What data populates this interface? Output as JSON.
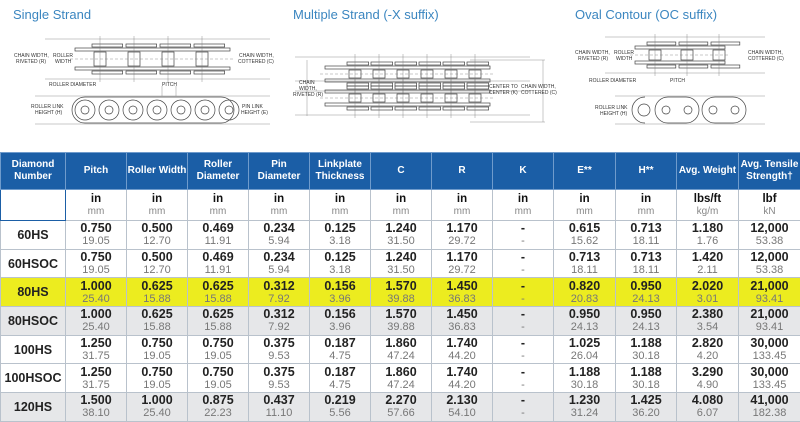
{
  "diagrams": {
    "single": {
      "title": "Single Strand",
      "labels": {
        "chain_riveted": [
          "CHAIN WIDTH,",
          "RIVETED (R)"
        ],
        "roller_width": [
          "ROLLER",
          "WIDTH"
        ],
        "chain_cottered": [
          "CHAIN WIDTH,",
          "COTTERED (C)"
        ],
        "roller_diameter": "ROLLER DIAMETER",
        "pitch": "PITCH",
        "roller_link": [
          "ROLLER LINK",
          "HEIGHT (H)"
        ],
        "pin_link": [
          "PIN LINK",
          "HEIGHT (E)"
        ]
      }
    },
    "multiple": {
      "title": "Multiple Strand (-X suffix)",
      "labels": {
        "chain_riveted": [
          "CHAIN",
          "WIDTH,",
          "RIVETED (R)"
        ],
        "center": [
          "CENTER TO",
          "CENTER (K)"
        ],
        "chain_cottered": [
          "CHAIN WIDTH,",
          "COTTERED (C)"
        ]
      }
    },
    "oval": {
      "title": "Oval Contour (OC suffix)",
      "labels": {
        "chain_riveted": [
          "CHAIN WIDTH,",
          "RIVETED (R)"
        ],
        "roller_width": [
          "ROLLER",
          "WIDTH"
        ],
        "chain_cottered": [
          "CHAIN WIDTH,",
          "COTTERED (C)"
        ],
        "roller_diameter": "ROLLER DIAMETER",
        "pitch": "PITCH",
        "roller_link": [
          "ROLLER LINK",
          "HEIGHT (H)"
        ]
      }
    }
  },
  "colors": {
    "header": "#1b5ea6",
    "highlight": "#ecec1f",
    "alt_row": "#e6e7e9",
    "title": "#3b86c0"
  },
  "table": {
    "headers": [
      [
        "Diamond",
        "Number"
      ],
      [
        "Pitch"
      ],
      [
        "Roller Width"
      ],
      [
        "Roller",
        "Diameter"
      ],
      [
        "Pin",
        "Diameter"
      ],
      [
        "Linkplate",
        "Thickness"
      ],
      [
        "C"
      ],
      [
        "R"
      ],
      [
        "K"
      ],
      [
        "E**"
      ],
      [
        "H**"
      ],
      [
        "Avg. Weight"
      ],
      [
        "Avg. Tensile",
        "Strength†"
      ]
    ],
    "units": [
      null,
      [
        "in",
        "mm"
      ],
      [
        "in",
        "mm"
      ],
      [
        "in",
        "mm"
      ],
      [
        "in",
        "mm"
      ],
      [
        "in",
        "mm"
      ],
      [
        "in",
        "mm"
      ],
      [
        "in",
        "mm"
      ],
      [
        "in",
        "mm"
      ],
      [
        "in",
        "mm"
      ],
      [
        "in",
        "mm"
      ],
      [
        "lbs/ft",
        "kg/m"
      ],
      [
        "lbf",
        "kN"
      ]
    ],
    "rows": [
      {
        "name": "60HS",
        "style": "white",
        "cells": [
          [
            "0.750",
            "19.05"
          ],
          [
            "0.500",
            "12.70"
          ],
          [
            "0.469",
            "11.91"
          ],
          [
            "0.234",
            "5.94"
          ],
          [
            "0.125",
            "3.18"
          ],
          [
            "1.240",
            "31.50"
          ],
          [
            "1.170",
            "29.72"
          ],
          [
            "-",
            "-"
          ],
          [
            "0.615",
            "15.62"
          ],
          [
            "0.713",
            "18.11"
          ],
          [
            "1.180",
            "1.76"
          ],
          [
            "12,000",
            "53.38"
          ]
        ]
      },
      {
        "name": "60HSOC",
        "style": "white",
        "cells": [
          [
            "0.750",
            "19.05"
          ],
          [
            "0.500",
            "12.70"
          ],
          [
            "0.469",
            "11.91"
          ],
          [
            "0.234",
            "5.94"
          ],
          [
            "0.125",
            "3.18"
          ],
          [
            "1.240",
            "31.50"
          ],
          [
            "1.170",
            "29.72"
          ],
          [
            "-",
            "-"
          ],
          [
            "0.713",
            "18.11"
          ],
          [
            "0.713",
            "18.11"
          ],
          [
            "1.420",
            "2.11"
          ],
          [
            "12,000",
            "53.38"
          ]
        ]
      },
      {
        "name": "80HS",
        "style": "highlight",
        "cells": [
          [
            "1.000",
            "25.40"
          ],
          [
            "0.625",
            "15.88"
          ],
          [
            "0.625",
            "15.88"
          ],
          [
            "0.312",
            "7.92"
          ],
          [
            "0.156",
            "3.96"
          ],
          [
            "1.570",
            "39.88"
          ],
          [
            "1.450",
            "36.83"
          ],
          [
            "-",
            "-"
          ],
          [
            "0.820",
            "20.83"
          ],
          [
            "0.950",
            "24.13"
          ],
          [
            "2.020",
            "3.01"
          ],
          [
            "21,000",
            "93.41"
          ]
        ]
      },
      {
        "name": "80HSOC",
        "style": "grey",
        "cells": [
          [
            "1.000",
            "25.40"
          ],
          [
            "0.625",
            "15.88"
          ],
          [
            "0.625",
            "15.88"
          ],
          [
            "0.312",
            "7.92"
          ],
          [
            "0.156",
            "3.96"
          ],
          [
            "1.570",
            "39.88"
          ],
          [
            "1.450",
            "36.83"
          ],
          [
            "-",
            "-"
          ],
          [
            "0.950",
            "24.13"
          ],
          [
            "0.950",
            "24.13"
          ],
          [
            "2.380",
            "3.54"
          ],
          [
            "21,000",
            "93.41"
          ]
        ]
      },
      {
        "name": "100HS",
        "style": "white",
        "cells": [
          [
            "1.250",
            "31.75"
          ],
          [
            "0.750",
            "19.05"
          ],
          [
            "0.750",
            "19.05"
          ],
          [
            "0.375",
            "9.53"
          ],
          [
            "0.187",
            "4.75"
          ],
          [
            "1.860",
            "47.24"
          ],
          [
            "1.740",
            "44.20"
          ],
          [
            "-",
            "-"
          ],
          [
            "1.025",
            "26.04"
          ],
          [
            "1.188",
            "30.18"
          ],
          [
            "2.820",
            "4.20"
          ],
          [
            "30,000",
            "133.45"
          ]
        ]
      },
      {
        "name": "100HSOC",
        "style": "white",
        "cells": [
          [
            "1.250",
            "31.75"
          ],
          [
            "0.750",
            "19.05"
          ],
          [
            "0.750",
            "19.05"
          ],
          [
            "0.375",
            "9.53"
          ],
          [
            "0.187",
            "4.75"
          ],
          [
            "1.860",
            "47.24"
          ],
          [
            "1.740",
            "44.20"
          ],
          [
            "-",
            "-"
          ],
          [
            "1.188",
            "30.18"
          ],
          [
            "1.188",
            "30.18"
          ],
          [
            "3.290",
            "4.90"
          ],
          [
            "30,000",
            "133.45"
          ]
        ]
      },
      {
        "name": "120HS",
        "style": "grey",
        "cells": [
          [
            "1.500",
            "38.10"
          ],
          [
            "1.000",
            "25.40"
          ],
          [
            "0.875",
            "22.23"
          ],
          [
            "0.437",
            "11.10"
          ],
          [
            "0.219",
            "5.56"
          ],
          [
            "2.270",
            "57.66"
          ],
          [
            "2.130",
            "54.10"
          ],
          [
            "-",
            "-"
          ],
          [
            "1.230",
            "31.24"
          ],
          [
            "1.425",
            "36.20"
          ],
          [
            "4.080",
            "6.07"
          ],
          [
            "41,000",
            "182.38"
          ]
        ]
      }
    ]
  }
}
